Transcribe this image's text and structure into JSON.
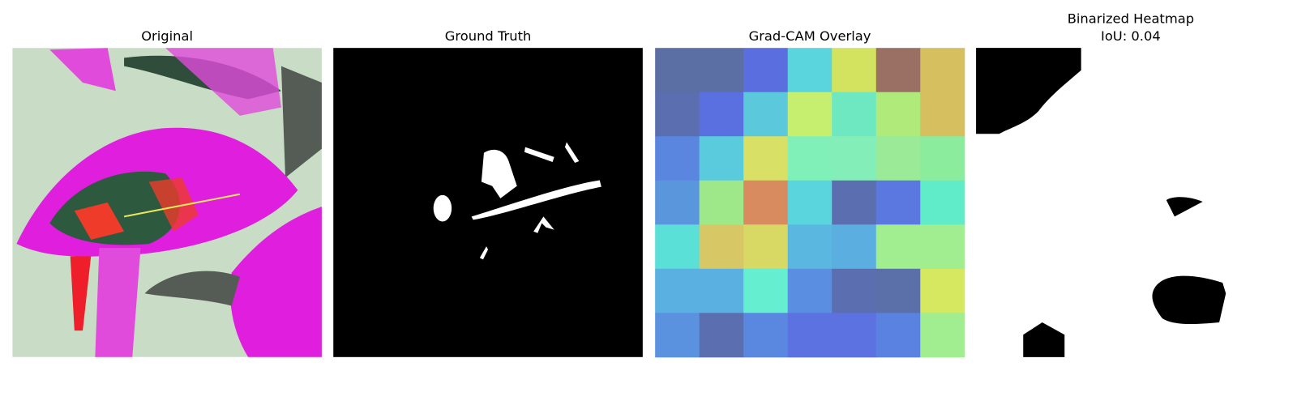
{
  "panels": [
    {
      "title": [
        "Original"
      ]
    },
    {
      "title": [
        "Ground Truth"
      ]
    },
    {
      "title": [
        "Grad-CAM Overlay"
      ],
      "cells": [
        [
          "#5b6fa5",
          "#5b6fa5",
          "#5b6ee0",
          "#5ad5de",
          "#d4e35f",
          "#9a7065",
          "#d6bf5e"
        ],
        [
          "#5b6fb0",
          "#5b70e0",
          "#5bc8dc",
          "#c7ef6f",
          "#6ee8c0",
          "#b0ea7a",
          "#d6bf5e"
        ],
        [
          "#5a86e0",
          "#5acbdd",
          "#d8e065",
          "#80f0b8",
          "#84eeb8",
          "#9aea98",
          "#8cec9e"
        ],
        [
          "#5a96dc",
          "#9ee88a",
          "#d88b5e",
          "#5ad5de",
          "#5b6fb0",
          "#5b78e0",
          "#60ecc8"
        ],
        [
          "#5ae0d6",
          "#d8c865",
          "#d8d865",
          "#5ab8e0",
          "#5aaee0",
          "#a0ee90",
          "#a0ee90"
        ],
        [
          "#5ab0e0",
          "#5ab0e0",
          "#66eed0",
          "#5a8ee0",
          "#5b6fb0",
          "#5b6fa8",
          "#d6e860"
        ],
        [
          "#5a92e0",
          "#5b6fb0",
          "#5a88e0",
          "#5b72e0",
          "#5b72e0",
          "#5a82e0",
          "#a0ee90"
        ]
      ]
    },
    {
      "title": [
        "Binarized Heatmap",
        "IoU: 0.04"
      ]
    }
  ]
}
